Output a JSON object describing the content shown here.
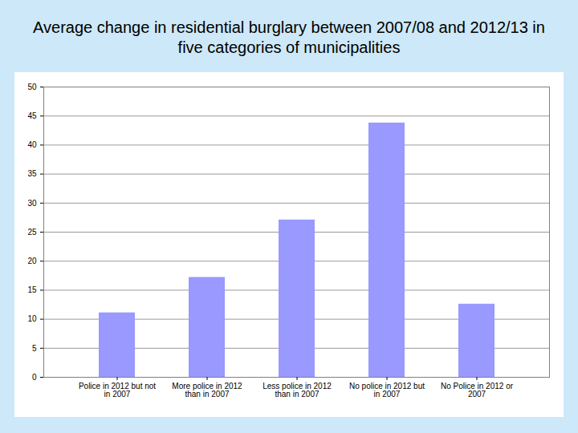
{
  "chart_data": {
    "type": "bar",
    "title": "Average change in residential burglary between 2007/08 and 2012/13 in five categories of municipalities",
    "categories": [
      "Police in 2012 but not in 2007",
      "More police in 2012 than in 2007",
      "Less police in 2012 than in 2007",
      "No police in 2012 but in 2007",
      "No Police in 2012 or 2007"
    ],
    "values": [
      11.1,
      17.2,
      27.1,
      43.8,
      12.6
    ],
    "color": "#9999ff",
    "ylim": [
      0,
      50
    ],
    "yticks": [
      0,
      5,
      10,
      15,
      20,
      25,
      30,
      35,
      40,
      45,
      50
    ],
    "grid": true
  }
}
